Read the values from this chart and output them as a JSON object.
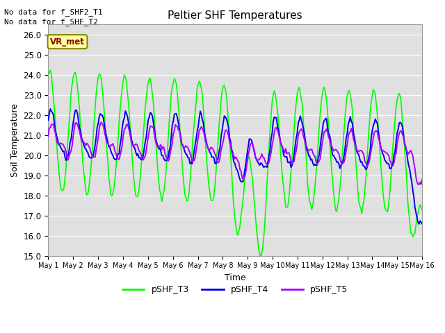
{
  "title": "Peltier SHF Temperatures",
  "xlabel": "Time",
  "ylabel": "Soil Temperature",
  "ylim": [
    15.0,
    26.5
  ],
  "yticks": [
    15.0,
    16.0,
    17.0,
    18.0,
    19.0,
    20.0,
    21.0,
    22.0,
    23.0,
    24.0,
    25.0,
    26.0
  ],
  "xtick_labels": [
    "May 1",
    "May 2",
    "May 3",
    "May 4",
    "May 5",
    "May 6",
    "May 7",
    "May 8",
    "May 9",
    "May 10",
    "May 11",
    "May 12",
    "May 13",
    "May 14",
    "May 15",
    "May 16"
  ],
  "color_T3": "#00FF00",
  "color_T4": "#0000EE",
  "color_T5": "#AA00FF",
  "bg_color": "#E0E0E0",
  "fig_bg": "#FFFFFF",
  "vr_met_label": "VR_met",
  "legend_entries": [
    "pSHF_T3",
    "pSHF_T4",
    "pSHF_T5"
  ],
  "no_data_text1": "No data for f_SHF2_T1",
  "no_data_text2": "No data for f_SHF_T2",
  "lw_T3": 1.2,
  "lw_T4": 1.4,
  "lw_T5": 1.4
}
